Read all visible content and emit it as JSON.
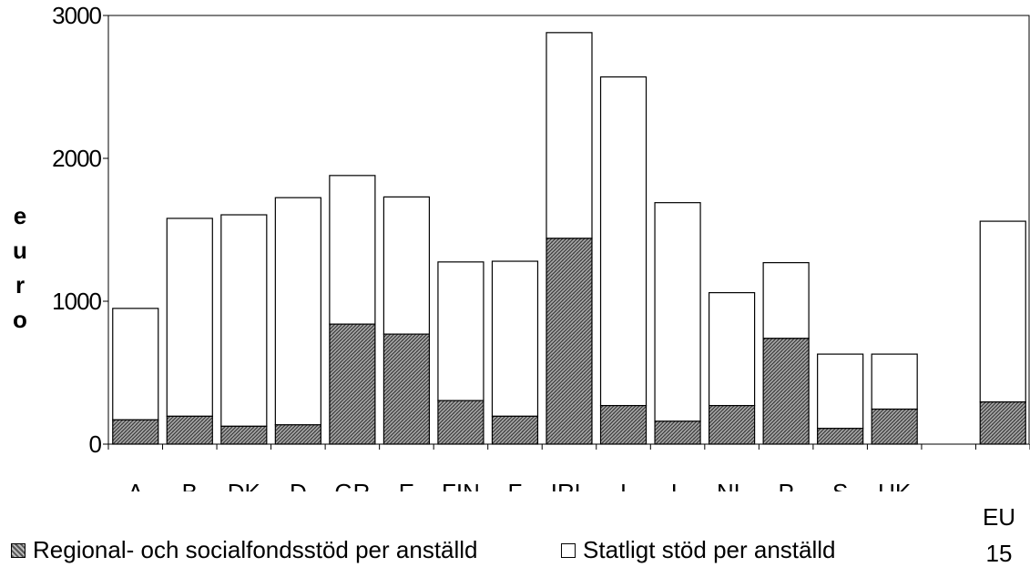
{
  "chart_data": {
    "type": "bar",
    "stacked": true,
    "categories": [
      "A",
      "B",
      "DK",
      "D",
      "GR",
      "E",
      "FIN",
      "F",
      "IRL",
      "I",
      "L",
      "NL",
      "P",
      "S",
      "UK",
      "",
      "EU 15"
    ],
    "series": [
      {
        "name": "Regional- och socialfondsstöd per anställd",
        "color": "#808080",
        "pattern": "hatched",
        "values": [
          170,
          195,
          125,
          135,
          840,
          770,
          305,
          195,
          1440,
          270,
          160,
          270,
          740,
          110,
          245,
          null,
          295
        ]
      },
      {
        "name": "Statligt stöd per anställd",
        "color": "#ffffff",
        "values": [
          780,
          1385,
          1480,
          1590,
          1040,
          960,
          970,
          1085,
          1440,
          2300,
          1530,
          790,
          530,
          520,
          385,
          null,
          1265
        ]
      }
    ],
    "ylabel": "euro",
    "ylim": [
      0,
      3000
    ],
    "yticks": [
      0,
      1000,
      2000,
      3000
    ],
    "xtick_labels": [
      "A",
      "B",
      "DK",
      "D",
      "GR",
      "E",
      "FIN",
      "F",
      "IRL",
      "I",
      "L",
      "NL",
      "P",
      "S",
      "UK"
    ],
    "corner_label": [
      "EU",
      "15"
    ],
    "grid": false,
    "legend_position": "bottom"
  }
}
